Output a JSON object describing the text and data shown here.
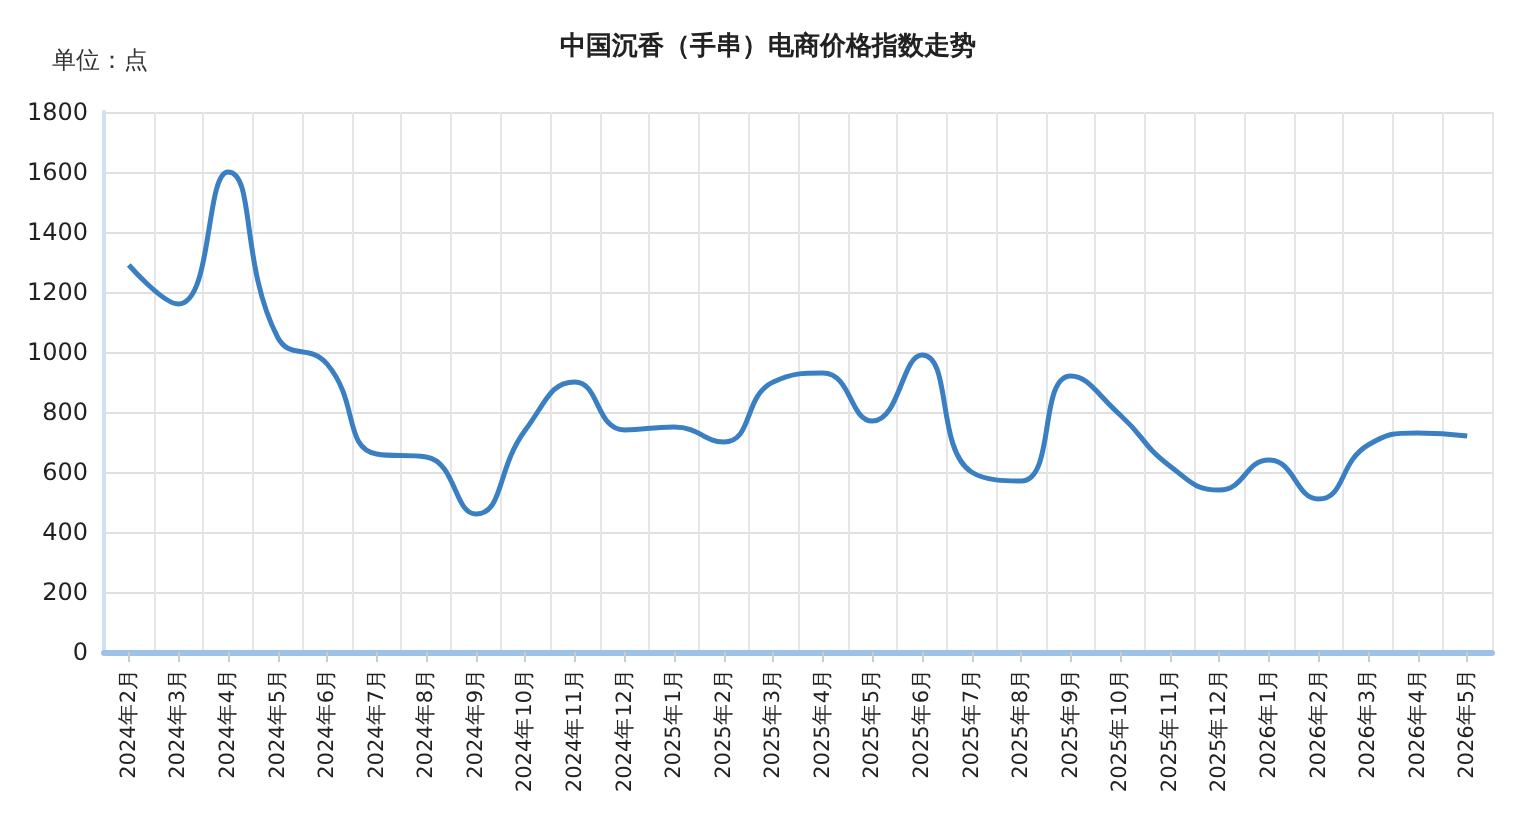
{
  "chart_data": {
    "type": "line",
    "title": "中国沉香（手串）电商价格指数走势",
    "annotations": [
      "单位：点"
    ],
    "categories": [
      "2024年2月",
      "2024年3月",
      "2024年4月",
      "2024年5月",
      "2024年6月",
      "2024年7月",
      "2024年8月",
      "2024年9月",
      "2024年10月",
      "2024年11月",
      "2024年12月",
      "2025年1月",
      "2025年2月",
      "2025年3月",
      "2025年4月",
      "2025年5月",
      "2025年6月",
      "2025年7月",
      "2025年8月",
      "2025年9月",
      "2025年10月",
      "2025年11月",
      "2025年12月",
      "2026年1月",
      "2026年2月",
      "2026年3月",
      "2026年4月",
      "2026年5月"
    ],
    "series": [
      {
        "color": "#3a7fc1",
        "values": [
          1290,
          1160,
          1600,
          1050,
          960,
          660,
          650,
          460,
          740,
          900,
          740,
          750,
          700,
          900,
          930,
          770,
          990,
          600,
          570,
          920,
          790,
          620,
          540,
          640,
          510,
          690,
          730,
          720
        ]
      }
    ],
    "ylim": [
      0,
      1800
    ],
    "yticks": [
      0,
      200,
      400,
      600,
      800,
      1000,
      1200,
      1400,
      1600,
      1800
    ],
    "grid": true,
    "marker": "none",
    "line_style": "solid"
  }
}
